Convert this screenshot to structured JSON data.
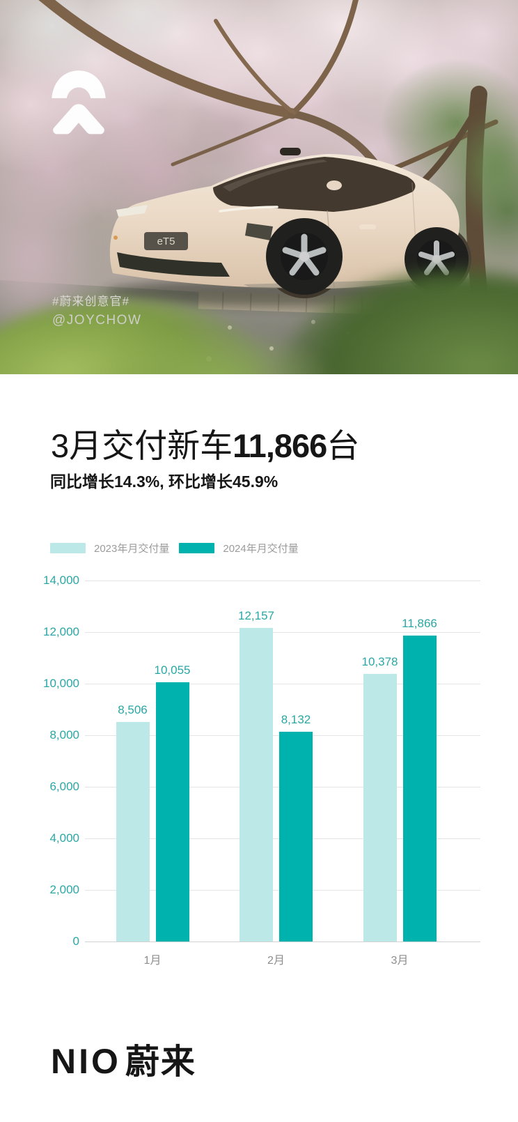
{
  "photo": {
    "hashtag": "#蔚来创意官#",
    "credit": "@JOYCHOW",
    "license_plate": "eT5"
  },
  "headline": {
    "prefix": "3月交付新车",
    "number": "11,866",
    "suffix": "台"
  },
  "subheadline": "同比增长14.3%, 环比增长45.9%",
  "chart_data": {
    "type": "bar",
    "title": "",
    "categories": [
      "1月",
      "2月",
      "3月"
    ],
    "series": [
      {
        "name": "2023年月交付量",
        "color": "#bce9e7",
        "values": [
          8506,
          12157,
          10378
        ],
        "value_labels": [
          "8,506",
          "12,157",
          "10,378"
        ]
      },
      {
        "name": "2024年月交付量",
        "color": "#00b2ae",
        "values": [
          10055,
          8132,
          11866
        ],
        "value_labels": [
          "10,055",
          "8,132",
          "11,866"
        ]
      }
    ],
    "ylim": [
      0,
      14000
    ],
    "yticks": [
      0,
      2000,
      4000,
      6000,
      8000,
      10000,
      12000,
      14000
    ],
    "ytick_labels": [
      "0",
      "2,000",
      "4,000",
      "6,000",
      "8,000",
      "10,000",
      "12,000",
      "14,000"
    ],
    "grid": true,
    "legend_position": "top-left",
    "value_label_color": "#2aa7a4",
    "ytick_color": "#2aa7a4",
    "xtick_color": "#8d8d8d"
  },
  "footer": {
    "wordmark_latin": "NIO",
    "wordmark_cn": "蔚来"
  }
}
